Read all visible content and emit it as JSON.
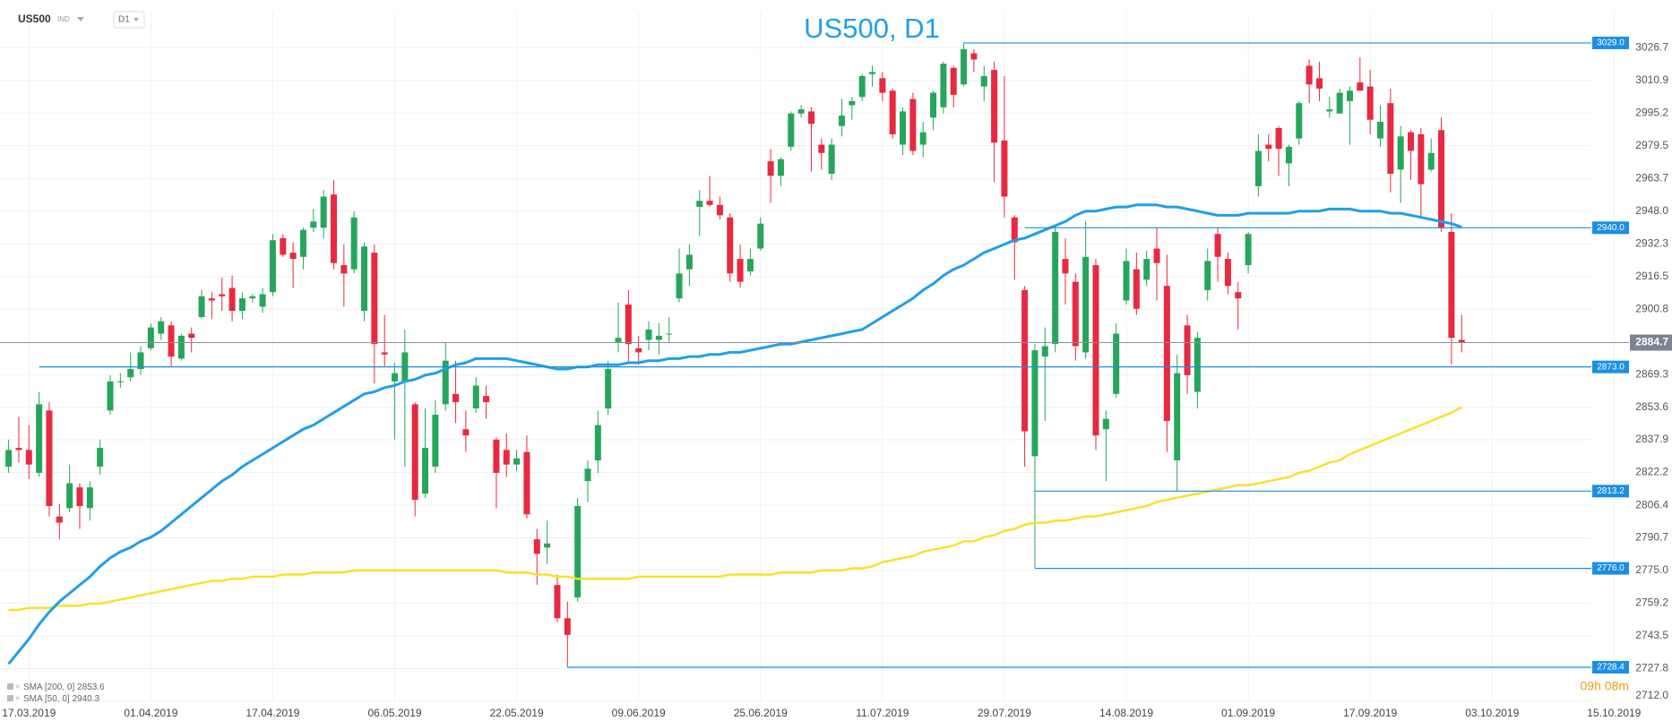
{
  "chart_data": {
    "type": "candlestick",
    "symbol": "US500",
    "market": "IND",
    "timeframe": "D1",
    "title": "US500, D1",
    "timer": "09h 08m",
    "grid": true,
    "colors": {
      "up": "#26a65b",
      "down": "#e8293f"
    },
    "categories": [
      null,
      null,
      "17.03.2019",
      null,
      null,
      null,
      null,
      null,
      null,
      null,
      null,
      null,
      null,
      null,
      "01.04.2019",
      null,
      null,
      null,
      null,
      null,
      null,
      null,
      null,
      null,
      null,
      null,
      "17.04.2019",
      null,
      null,
      null,
      null,
      null,
      null,
      null,
      null,
      null,
      null,
      null,
      "06.05.2019",
      null,
      null,
      null,
      null,
      null,
      null,
      null,
      null,
      null,
      null,
      null,
      "22.05.2019",
      null,
      null,
      null,
      null,
      null,
      null,
      null,
      null,
      null,
      null,
      null,
      "09.06.2019",
      null,
      null,
      null,
      null,
      null,
      null,
      null,
      null,
      null,
      null,
      null,
      "25.06.2019",
      null,
      null,
      null,
      null,
      null,
      null,
      null,
      null,
      null,
      null,
      null,
      "11.07.2019",
      null,
      null,
      null,
      null,
      null,
      null,
      null,
      null,
      null,
      null,
      null,
      "29.07.2019",
      null,
      null,
      null,
      null,
      null,
      null,
      null,
      null,
      null,
      null,
      null,
      "14.08.2019",
      null,
      null,
      null,
      null,
      null,
      null,
      null,
      null,
      null,
      null,
      null,
      "01.09.2019",
      null,
      null,
      null,
      null,
      null,
      null,
      null,
      null,
      null,
      null,
      null,
      "17.09.2019",
      null,
      null,
      null,
      null,
      null,
      null,
      null,
      null,
      null,
      null,
      null,
      "03.10.2019",
      null,
      null,
      null,
      null,
      null,
      null,
      null,
      null,
      null,
      null,
      null,
      "15.10.2019"
    ],
    "open": [
      2825,
      2834,
      2833,
      2822,
      2852,
      2801,
      2805,
      2815,
      2805,
      2825,
      2852,
      2866,
      2868,
      2872,
      2882,
      2889,
      2893,
      2877,
      2889,
      2897,
      2906,
      2908,
      2911,
      2900,
      2906,
      2902,
      2909,
      2935,
      2928,
      2926,
      2940,
      2940,
      2956,
      2922,
      2920,
      2900,
      2928,
      2880,
      2866,
      2866,
      2855,
      2812,
      2825,
      2855,
      2860,
      2843,
      2853,
      2859,
      2838,
      2833,
      2826,
      2832,
      2790,
      2786,
      2768,
      2752,
      2762,
      2818,
      2828,
      2853,
      2885,
      2903,
      2882,
      2886,
      2886,
      2889,
      2906,
      2920,
      2950,
      2953,
      2951,
      2945,
      2925,
      2919,
      2930,
      2972,
      2965,
      2979,
      2995,
      2996,
      2980,
      2966,
      2989,
      2999,
      3003,
      3014,
      3012,
      3006,
      2980,
      3002,
      2980,
      2993,
      2998,
      3017,
      3009,
      3024,
      3008,
      3016,
      2982,
      2945,
      2910,
      2830,
      2878,
      2884,
      2925,
      2914,
      2880,
      2922,
      2843,
      2860,
      2905,
      2920,
      2915,
      2930,
      2912,
      2828,
      2893,
      2861,
      2910,
      2937,
      2925,
      2909,
      2922,
      2960,
      2980,
      2988,
      2971,
      2983,
      3018,
      3012,
      2996,
      2995,
      3001,
      3010,
      3008,
      2983,
      3000,
      2968,
      2986,
      2985,
      2968,
      2987,
      2938,
      2886,
      null,
      null,
      null,
      null,
      null,
      null,
      null,
      null,
      null,
      null,
      null,
      null,
      null,
      null,
      null
    ],
    "high": [
      2838,
      2849,
      2845,
      2861,
      2856,
      2807,
      2826,
      2817,
      2818,
      2838,
      2869,
      2870,
      2880,
      2883,
      2894,
      2897,
      2895,
      2889,
      2892,
      2910,
      2909,
      2916,
      2917,
      2909,
      2908,
      2911,
      2937,
      2937,
      2933,
      2940,
      2949,
      2958,
      2963,
      2932,
      2948,
      2933,
      2932,
      2898,
      2875,
      2891,
      2856,
      2853,
      2857,
      2885,
      2876,
      2852,
      2868,
      2864,
      2839,
      2841,
      2833,
      2840,
      2795,
      2799,
      2773,
      2760,
      2810,
      2828,
      2852,
      2876,
      2904,
      2910,
      2888,
      2895,
      2894,
      2897,
      2930,
      2932,
      2958,
      2965,
      2955,
      2947,
      2932,
      2930,
      2945,
      2978,
      2974,
      2996,
      2999,
      2998,
      2983,
      2983,
      3002,
      3003,
      3014,
      3018,
      3015,
      3007,
      2998,
      3005,
      2991,
      3006,
      3020,
      3018,
      3029,
      3026,
      3018,
      3020,
      3013,
      2946,
      2912,
      2884,
      2892,
      2941,
      2935,
      2918,
      2943,
      2925,
      2852,
      2894,
      2930,
      2928,
      2929,
      2940,
      2927,
      2879,
      2898,
      2890,
      2930,
      2940,
      2928,
      2914,
      2938,
      2985,
      2985,
      2989,
      2980,
      3001,
      3021,
      3020,
      3003,
      3007,
      3008,
      3022,
      3016,
      2999,
      3007,
      2989,
      2987,
      2988,
      2983,
      2993,
      2947,
      2898,
      null,
      null,
      null,
      null,
      null,
      null,
      null,
      null,
      null,
      null,
      null,
      null,
      null,
      null,
      null
    ],
    "low": [
      2822,
      2827,
      2819,
      2820,
      2801,
      2790,
      2803,
      2795,
      2799,
      2821,
      2850,
      2863,
      2866,
      2869,
      2881,
      2886,
      2873,
      2876,
      2880,
      2896,
      2896,
      2900,
      2895,
      2896,
      2904,
      2899,
      2907,
      2926,
      2911,
      2920,
      2938,
      2935,
      2920,
      2902,
      2918,
      2895,
      2865,
      2873,
      2838,
      2825,
      2801,
      2810,
      2822,
      2852,
      2846,
      2832,
      2851,
      2848,
      2805,
      2820,
      2823,
      2800,
      2768,
      2778,
      2750,
      2728.4,
      2760,
      2808,
      2822,
      2850,
      2880,
      2875,
      2874,
      2881,
      2879,
      2885,
      2904,
      2912,
      2936,
      2950,
      2944,
      2914,
      2911,
      2917,
      2929,
      2952,
      2960,
      2977,
      2993,
      2967,
      2968,
      2963,
      2984,
      2992,
      3001,
      3008,
      3001,
      2983,
      2975,
      2975,
      2974,
      2987,
      2995,
      2998,
      3008,
      3015,
      3001,
      2962,
      2945,
      2915,
      2825,
      2776,
      2847,
      2880,
      2903,
      2876,
      2877,
      2833,
      2818,
      2858,
      2903,
      2898,
      2912,
      2905,
      2832,
      2813,
      2860,
      2853,
      2905,
      2914,
      2908,
      2891,
      2918,
      2955,
      2972,
      2965,
      2960,
      2980,
      3000,
      3001,
      2993,
      2995,
      2980,
      3006,
      2985,
      2979,
      2957,
      2952,
      2963,
      2945,
      2967,
      2938,
      2874,
      2880,
      null,
      null,
      null,
      null,
      null,
      null,
      null,
      null,
      null,
      null,
      null,
      null,
      null,
      null,
      null
    ],
    "close": [
      2833,
      2833,
      2826,
      2855,
      2806,
      2798,
      2817,
      2806,
      2815,
      2834,
      2866,
      2866,
      2872,
      2880,
      2892,
      2895,
      2878,
      2888,
      2887,
      2907,
      2905,
      2907,
      2900,
      2906,
      2907,
      2908,
      2934,
      2927,
      2925,
      2939,
      2943,
      2955,
      2923,
      2918,
      2945,
      2931,
      2884,
      2879,
      2870,
      2880,
      2809,
      2834,
      2850,
      2876,
      2856,
      2840,
      2864,
      2856,
      2822,
      2826,
      2829,
      2802,
      2783,
      2788,
      2752,
      2744,
      2806,
      2824,
      2845,
      2872,
      2887,
      2884,
      2880,
      2891,
      2888,
      2889,
      2918,
      2927,
      2953,
      2951,
      2946,
      2918,
      2914,
      2925,
      2942,
      2965,
      2973,
      2995,
      2997,
      2990,
      2976,
      2980,
      2994,
      3001,
      3013,
      3015,
      3005,
      2985,
      2996,
      2977,
      2986,
      3005,
      3019,
      3004,
      3026,
      3021,
      3013,
      2981,
      2955,
      2933,
      2842,
      2881,
      2883,
      2938,
      2918,
      2883,
      2926,
      2840,
      2848,
      2889,
      2924,
      2901,
      2925,
      2923,
      2847,
      2870,
      2869,
      2887,
      2924,
      2926,
      2912,
      2906,
      2937,
      2977,
      2978,
      2978,
      2979,
      3000,
      3009,
      3007,
      2997,
      3005,
      3006,
      3006,
      2992,
      2991,
      2966,
      2984,
      2977,
      2961,
      2976,
      2940,
      2887,
      2884.7,
      null,
      null,
      null,
      null,
      null,
      null,
      null,
      null,
      null,
      null,
      null,
      null,
      null,
      null,
      null
    ],
    "series": [
      {
        "name": "SMA [200, 0]",
        "color": "#f7e22b",
        "values": [
          2756,
          2756,
          2757,
          2757,
          2757,
          2758,
          2758,
          2758,
          2759,
          2759,
          2760,
          2761,
          2762,
          2763,
          2764,
          2765,
          2766,
          2767,
          2768,
          2769,
          2770,
          2770,
          2771,
          2771,
          2772,
          2772,
          2772,
          2773,
          2773,
          2773,
          2774,
          2774,
          2774,
          2774,
          2775,
          2775,
          2775,
          2775,
          2775,
          2775,
          2775,
          2775,
          2775,
          2775,
          2775,
          2775,
          2775,
          2775,
          2775,
          2774,
          2774,
          2774,
          2773,
          2773,
          2772,
          2772,
          2771,
          2771,
          2771,
          2771,
          2771,
          2771,
          2772,
          2772,
          2772,
          2772,
          2772,
          2772,
          2772,
          2772,
          2772,
          2773,
          2773,
          2773,
          2773,
          2773,
          2774,
          2774,
          2774,
          2774,
          2775,
          2775,
          2775,
          2776,
          2776,
          2777,
          2779,
          2780,
          2781,
          2782,
          2784,
          2785,
          2786,
          2787,
          2789,
          2789,
          2791,
          2792,
          2794,
          2795,
          2797,
          2798,
          2798,
          2799,
          2799,
          2800,
          2801,
          2801,
          2802,
          2803,
          2804,
          2805,
          2806,
          2808,
          2809,
          2810,
          2811,
          2812,
          2813,
          2814,
          2815,
          2816,
          2816,
          2817,
          2818,
          2819,
          2820,
          2822,
          2823,
          2825,
          2827,
          2828,
          2831,
          2833,
          2835,
          2837,
          2839,
          2841,
          2843,
          2845,
          2847,
          2849,
          2851,
          2853.6,
          null,
          null,
          null,
          null,
          null,
          null,
          null,
          null,
          null,
          null,
          null,
          null,
          null,
          null,
          null
        ]
      },
      {
        "name": "SMA [50, 0]",
        "color": "#1ea0e8",
        "values": [
          2730,
          2736,
          2742,
          2749,
          2755,
          2760,
          2764,
          2768,
          2772,
          2777,
          2781,
          2784,
          2786,
          2789,
          2791,
          2794,
          2798,
          2802,
          2806,
          2810,
          2814,
          2818,
          2821,
          2825,
          2828,
          2831,
          2834,
          2837,
          2840,
          2843,
          2845,
          2848,
          2851,
          2854,
          2857,
          2860,
          2861,
          2863,
          2864,
          2866,
          2867,
          2869,
          2870,
          2872,
          2874,
          2875,
          2877,
          2877,
          2877,
          2877,
          2876,
          2875,
          2874,
          2873,
          2872,
          2872,
          2873,
          2873,
          2874,
          2874,
          2874,
          2875,
          2875,
          2876,
          2876,
          2877,
          2877,
          2878,
          2878,
          2879,
          2879,
          2880,
          2880,
          2881,
          2882,
          2883,
          2884,
          2884,
          2885,
          2886,
          2887,
          2888,
          2889,
          2890,
          2891,
          2894,
          2897,
          2900,
          2903,
          2906,
          2910,
          2913,
          2917,
          2920,
          2922,
          2925,
          2928,
          2930,
          2932,
          2934,
          2935,
          2937,
          2939,
          2941,
          2943,
          2946,
          2948,
          2948,
          2949,
          2950,
          2950,
          2951,
          2951,
          2951,
          2950,
          2950,
          2949,
          2948,
          2947,
          2946,
          2946,
          2946,
          2947,
          2947,
          2947,
          2947,
          2947,
          2948,
          2948,
          2948,
          2949,
          2949,
          2949,
          2948,
          2948,
          2948,
          2947,
          2947,
          2946,
          2945,
          2944,
          2943,
          2942,
          2940.3,
          null,
          null,
          null,
          null,
          null,
          null,
          null,
          null,
          null,
          null,
          null,
          null,
          null,
          null,
          null
        ]
      }
    ],
    "ylim": [
      2712,
      3035
    ],
    "yticks": [
      3026.7,
      3010.9,
      2995.2,
      2979.5,
      2963.7,
      {
        "value": 2948,
        "label": "2948.0"
      },
      2932.3,
      2916.5,
      2900.8,
      2869.3,
      2853.6,
      2837.9,
      2822.2,
      2806.4,
      2790.7,
      {
        "value": 2775,
        "label": "2775.0"
      },
      2759.2,
      2743.5,
      2727.8,
      {
        "value": 2712,
        "label": "2712.0"
      }
    ],
    "levels": [
      {
        "value": 3029,
        "label": "3029.0"
      },
      {
        "value": 2940,
        "label": "2940.0"
      },
      {
        "value": 2873,
        "label": "2873.0"
      },
      2813.2,
      {
        "value": 2776,
        "label": "2776.0"
      },
      2728.4
    ],
    "level_color": "#1a8fe3",
    "last_price": 2884.7
  }
}
